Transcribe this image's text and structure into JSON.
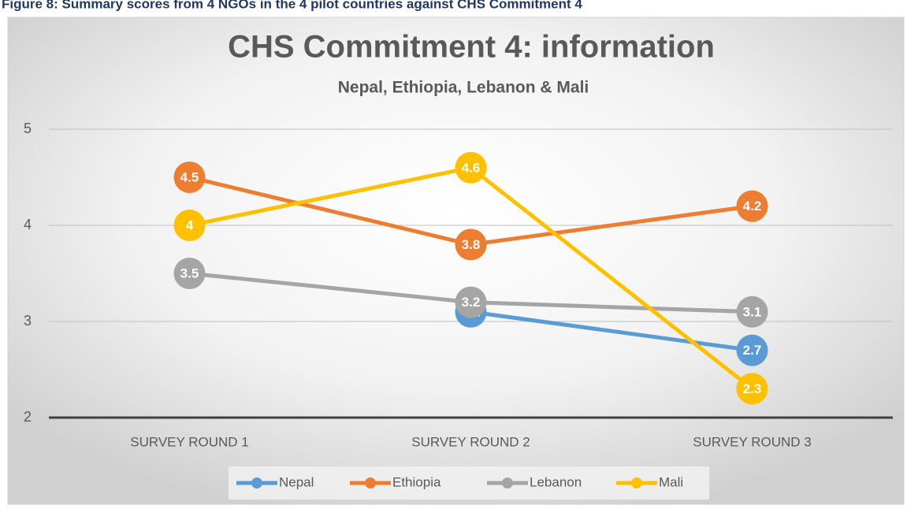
{
  "caption": "Figure 8: Summary scores from 4 NGOs in the 4 pilot countries against CHS Commitment 4",
  "chart_data": {
    "type": "line",
    "title": "CHS Commitment 4: information",
    "subtitle": "Nepal, Ethiopia, Lebanon & Mali",
    "categories": [
      "SURVEY ROUND 1",
      "SURVEY ROUND 2",
      "SURVEY ROUND 3"
    ],
    "series": [
      {
        "name": "Nepal",
        "color": "#5b9bd5",
        "values": [
          null,
          3.1,
          2.7
        ]
      },
      {
        "name": "Ethiopia",
        "color": "#ed7d31",
        "values": [
          4.5,
          3.8,
          4.2
        ]
      },
      {
        "name": "Lebanon",
        "color": "#a5a5a5",
        "values": [
          3.5,
          3.2,
          3.1
        ]
      },
      {
        "name": "Mali",
        "color": "#ffc000",
        "values": [
          4,
          4.6,
          2.3
        ]
      }
    ],
    "ylim": [
      2,
      5
    ],
    "yticks": [
      2,
      3,
      4,
      5
    ],
    "grid": true,
    "legend": "bottom"
  }
}
